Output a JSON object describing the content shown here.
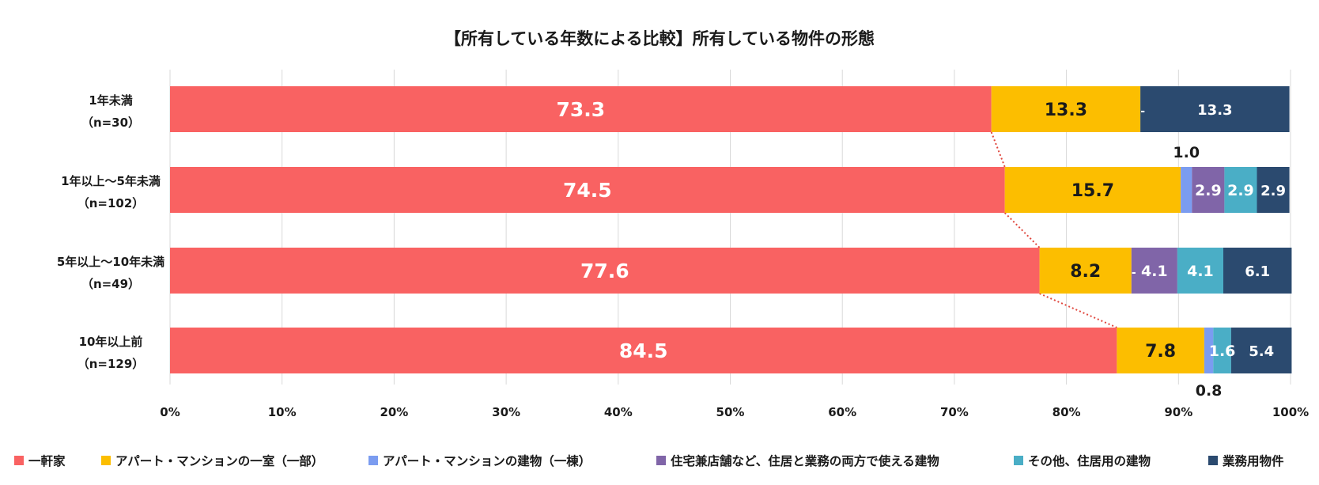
{
  "chart_data": {
    "type": "bar",
    "orientation": "horizontal",
    "stacked": true,
    "title": "【所有している年数による比較】所有している物件の形態",
    "categories": [
      {
        "name": "1年未満",
        "n": "（n=30）"
      },
      {
        "name": "1年以上～5年未満",
        "n": "（n=102）"
      },
      {
        "name": "5年以上～10年未満",
        "n": "（n=49）"
      },
      {
        "name": "10年以上前",
        "n": "（n=129）"
      }
    ],
    "series": [
      {
        "name": "一軒家",
        "color": "#f96262",
        "values": [
          73.3,
          74.5,
          77.6,
          84.5
        ],
        "labels": [
          "73.3",
          "74.5",
          "77.6",
          "84.5"
        ]
      },
      {
        "name": "アパート・マンションの一室（一部）",
        "color": "#fcbe00",
        "values": [
          13.3,
          15.7,
          8.2,
          7.8
        ],
        "labels": [
          "13.3",
          "15.7",
          "8.2",
          "7.8"
        ]
      },
      {
        "name": "アパート・マンションの建物（一棟）",
        "color": "#7b9cf0",
        "values": [
          0.0,
          1.0,
          0.0,
          0.8
        ],
        "labels": [
          "-",
          "1.0",
          "-",
          "0.8"
        ]
      },
      {
        "name": "住宅兼店舗など、住居と業務の両方で使える建物",
        "color": "#8065a8",
        "values": [
          0.0,
          2.9,
          4.1,
          0.0
        ],
        "labels": [
          "",
          "2.9",
          "4.1",
          ""
        ]
      },
      {
        "name": "その他、住居用の建物",
        "color": "#4aaec6",
        "values": [
          0.0,
          2.9,
          4.1,
          1.6
        ],
        "labels": [
          "",
          "2.9",
          "4.1",
          "1.6"
        ]
      },
      {
        "name": "業務用物件",
        "color": "#2b4a6f",
        "values": [
          13.3,
          2.9,
          6.1,
          5.4
        ],
        "labels": [
          "13.3",
          "2.9",
          "6.1",
          "5.4"
        ]
      }
    ],
    "xlim": [
      0,
      100
    ],
    "xticks": [
      "0%",
      "10%",
      "20%",
      "30%",
      "40%",
      "50%",
      "60%",
      "70%",
      "80%",
      "90%",
      "100%"
    ],
    "legend_position": "bottom",
    "connector_series": "一軒家"
  }
}
